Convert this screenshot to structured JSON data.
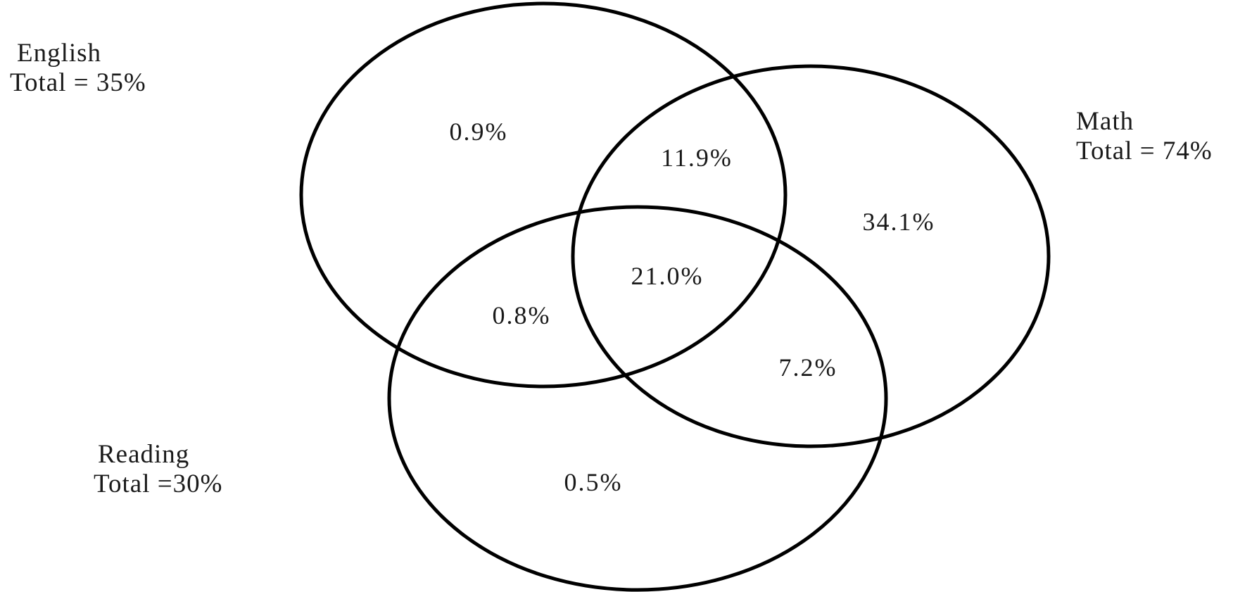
{
  "sets": {
    "english": {
      "name": "English",
      "total": "Total = 35%"
    },
    "math": {
      "name": "Math",
      "total": "Total = 74%"
    },
    "reading": {
      "name": "Reading",
      "total": "Total =30%"
    }
  },
  "regions": {
    "english_only": "0.9%",
    "english_math": "11.9%",
    "all_three": "21.0%",
    "math_only": "34.1%",
    "english_reading": "0.8%",
    "math_reading": "7.2%",
    "reading_only": "0.5%"
  },
  "colors": {
    "stroke": "#000000",
    "text": "#1a1a1a",
    "background": "#ffffff"
  }
}
